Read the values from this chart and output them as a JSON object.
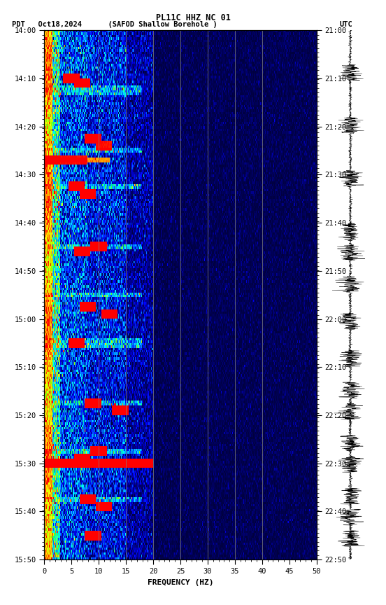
{
  "title_line1": "PL11C HHZ NC 01",
  "title_line2_left": "PDT   Oct18,2024      (SAFOD Shallow Borehole )",
  "title_right": "UTC",
  "left_yticks": [
    "14:00",
    "14:10",
    "14:20",
    "14:30",
    "14:40",
    "14:50",
    "15:00",
    "15:10",
    "15:20",
    "15:30",
    "15:40",
    "15:50"
  ],
  "right_yticks": [
    "21:00",
    "21:10",
    "21:20",
    "21:30",
    "21:40",
    "21:50",
    "22:00",
    "22:10",
    "22:20",
    "22:30",
    "22:40",
    "22:50"
  ],
  "xticks": [
    0,
    5,
    10,
    15,
    20,
    25,
    30,
    35,
    40,
    45,
    50
  ],
  "xlabel": "FREQUENCY (HZ)",
  "freq_max": 50,
  "time_steps": 220,
  "freq_steps": 400,
  "vline_freqs": [
    10,
    15,
    20,
    25,
    30,
    35,
    40
  ],
  "background_color": "#ffffff",
  "spectrogram_bg": "#00008b"
}
